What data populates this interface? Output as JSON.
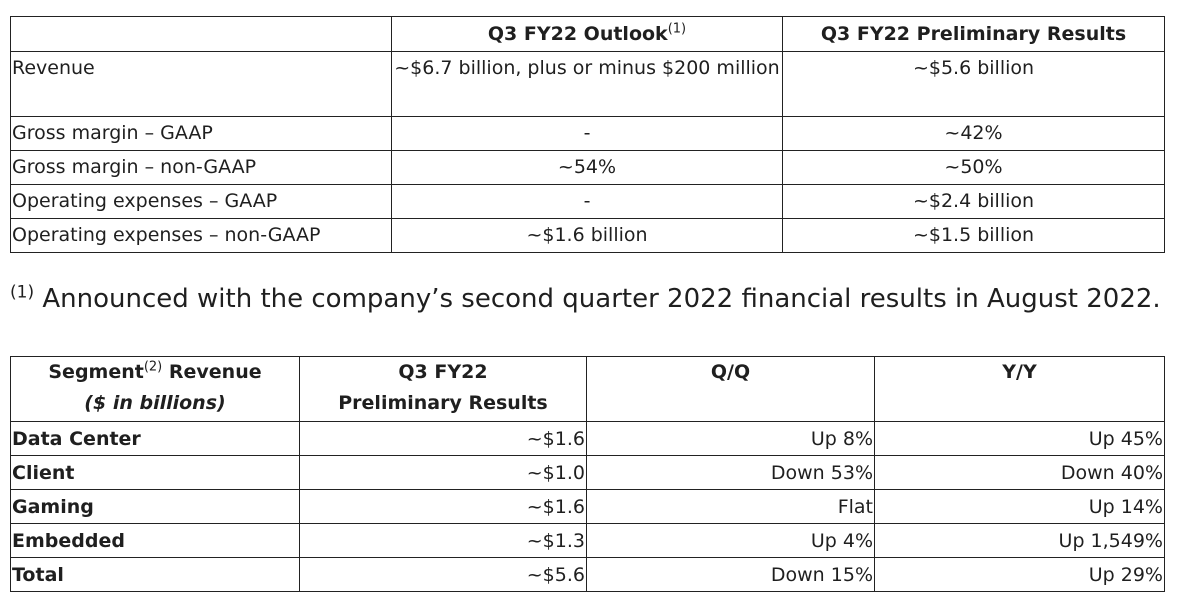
{
  "outlook_table": {
    "headers": {
      "blank": "",
      "outlook": "Q3 FY22 Outlook",
      "outlook_note": "(1)",
      "preliminary": "Q3 FY22 Preliminary Results"
    },
    "rows": [
      {
        "label": "Revenue",
        "outlook": "~$6.7 billion, plus or minus $200 million",
        "preliminary": "~$5.6 billion"
      },
      {
        "label": "Gross margin – GAAP",
        "outlook": "-",
        "preliminary": "~42%"
      },
      {
        "label": "Gross margin – non-GAAP",
        "outlook": "~54%",
        "preliminary": "~50%"
      },
      {
        "label": "Operating expenses – GAAP",
        "outlook": "-",
        "preliminary": "~$2.4 billion"
      },
      {
        "label": "Operating expenses – non-GAAP",
        "outlook": "~$1.6 billion",
        "preliminary": "~$1.5 billion"
      }
    ]
  },
  "footnote": {
    "marker": "(1)",
    "text": " Announced with the company’s second quarter 2022 financial results in August 2022."
  },
  "segment_table": {
    "headers": {
      "segment": "Segment",
      "segment_note": "(2)",
      "revenue": " Revenue",
      "units": "($ in billions)",
      "q3_line1": "Q3 FY22",
      "q3_line2": "Preliminary Results",
      "qq": "Q/Q",
      "yy": "Y/Y"
    },
    "rows": [
      {
        "segment": "Data Center",
        "value": "~$1.6",
        "qq": "Up 8%",
        "yy": "Up 45%"
      },
      {
        "segment": "Client",
        "value": "~$1.0",
        "qq": "Down 53%",
        "yy": "Down 40%"
      },
      {
        "segment": "Gaming",
        "value": "~$1.6",
        "qq": "Flat",
        "yy": "Up 14%"
      },
      {
        "segment": "Embedded",
        "value": "~$1.3",
        "qq": "Up 4%",
        "yy": "Up 1,549%"
      },
      {
        "segment": "Total",
        "value": "~$5.6",
        "qq": "Down 15%",
        "yy": "Up 29%"
      }
    ]
  }
}
